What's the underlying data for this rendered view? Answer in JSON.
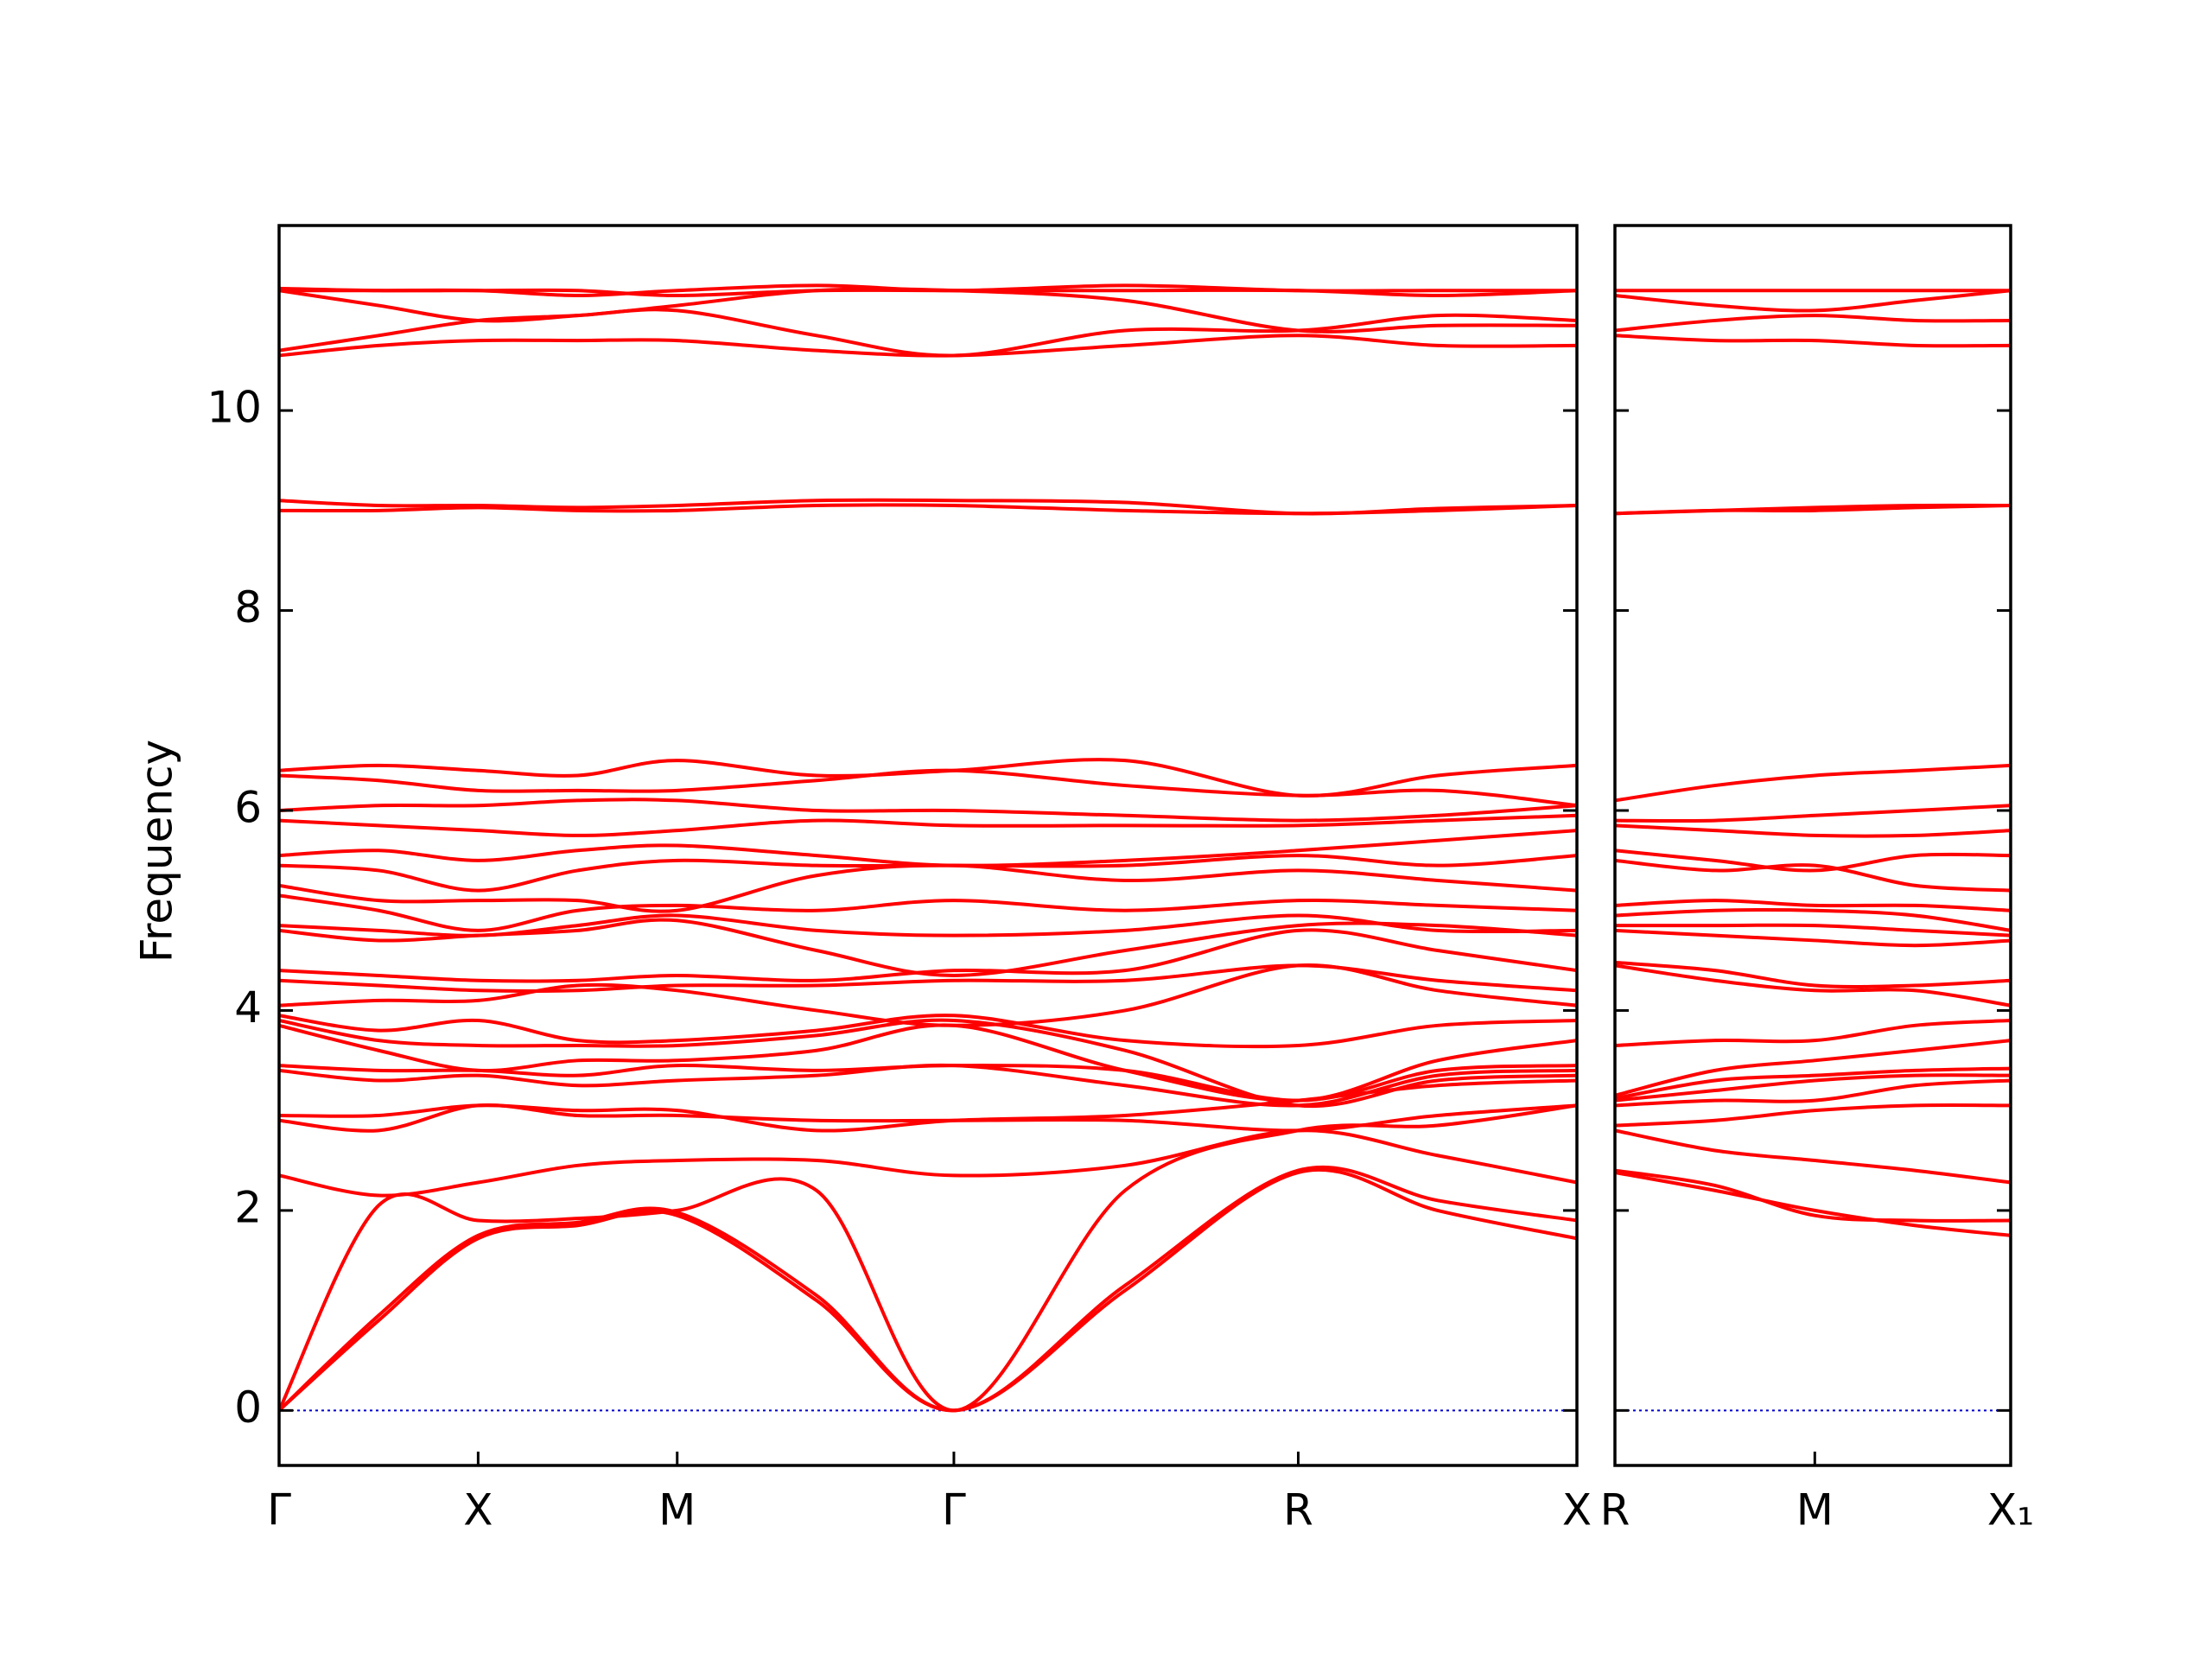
{
  "chart_data": [
    {
      "type": "line",
      "ylabel": "Frequency",
      "color": "#ff0000",
      "zero_line": true,
      "zero_line_color": "#0000cc",
      "x": [
        0,
        0.5,
        1,
        1.5,
        2,
        2.7,
        3.39,
        4.25,
        5.12,
        5.82,
        6.52
      ],
      "xlim": [
        0,
        6.52
      ],
      "xticks": [
        {
          "value": 0,
          "label": "Γ"
        },
        {
          "value": 1,
          "label": "X"
        },
        {
          "value": 2,
          "label": "M"
        },
        {
          "value": 3.39,
          "label": "Γ"
        },
        {
          "value": 5.12,
          "label": "R"
        },
        {
          "value": 6.52,
          "label": "X"
        }
      ],
      "ylim": [
        -0.55,
        11.85
      ],
      "yticks": [
        0,
        2,
        4,
        6,
        8,
        10
      ],
      "series": [
        {
          "values": [
            0,
            0.9,
            1.72,
            1.85,
            1.95,
            1.1,
            0,
            1.2,
            2.38,
            2.0,
            1.72
          ]
        },
        {
          "values": [
            0,
            0.95,
            1.75,
            1.88,
            1.98,
            1.15,
            0,
            1.25,
            2.4,
            2.1,
            1.9
          ]
        },
        {
          "values": [
            0,
            2.05,
            1.9,
            1.92,
            2.0,
            2.2,
            0,
            2.2,
            2.8,
            2.85,
            3.05
          ]
        },
        {
          "values": [
            2.35,
            2.15,
            2.28,
            2.45,
            2.5,
            2.5,
            2.35,
            2.45,
            2.8,
            2.55,
            2.28
          ]
        },
        {
          "values": [
            2.9,
            2.8,
            3.05,
            2.95,
            2.95,
            2.9,
            2.9,
            2.9,
            2.8,
            2.95,
            3.05
          ]
        },
        {
          "values": [
            2.95,
            2.95,
            3.05,
            3.0,
            3.0,
            2.8,
            2.9,
            2.95,
            3.1,
            3.25,
            3.3
          ]
        },
        {
          "values": [
            3.4,
            3.3,
            3.35,
            3.25,
            3.3,
            3.35,
            3.45,
            3.25,
            3.05,
            3.35,
            3.4
          ]
        },
        {
          "values": [
            3.45,
            3.4,
            3.4,
            3.35,
            3.45,
            3.4,
            3.45,
            3.4,
            3.1,
            3.4,
            3.45
          ]
        },
        {
          "values": [
            3.85,
            3.6,
            3.4,
            3.5,
            3.5,
            3.6,
            3.85,
            3.4,
            3.1,
            3.5,
            3.7
          ]
        },
        {
          "values": [
            3.9,
            3.7,
            3.65,
            3.65,
            3.65,
            3.75,
            3.9,
            3.6,
            3.05,
            3.3,
            3.35
          ]
        },
        {
          "values": [
            3.95,
            3.8,
            3.9,
            3.7,
            3.7,
            3.8,
            3.95,
            3.7,
            3.65,
            3.85,
            3.9
          ]
        },
        {
          "values": [
            4.05,
            4.1,
            4.1,
            4.25,
            4.2,
            4.0,
            3.85,
            4.0,
            4.45,
            4.2,
            4.05
          ]
        },
        {
          "values": [
            4.3,
            4.25,
            4.2,
            4.2,
            4.25,
            4.25,
            4.3,
            4.3,
            4.45,
            4.3,
            4.2
          ]
        },
        {
          "values": [
            4.4,
            4.35,
            4.3,
            4.3,
            4.35,
            4.3,
            4.4,
            4.4,
            4.8,
            4.6,
            4.4
          ]
        },
        {
          "values": [
            4.8,
            4.7,
            4.75,
            4.8,
            4.9,
            4.6,
            4.35,
            4.6,
            4.85,
            4.85,
            4.75
          ]
        },
        {
          "values": [
            4.85,
            4.8,
            4.75,
            4.85,
            4.95,
            4.8,
            4.75,
            4.8,
            4.95,
            4.8,
            4.8
          ]
        },
        {
          "values": [
            5.15,
            5.0,
            4.8,
            5.0,
            5.05,
            5.0,
            5.1,
            5.0,
            5.1,
            5.05,
            5.0
          ]
        },
        {
          "values": [
            5.25,
            5.1,
            5.1,
            5.1,
            5.0,
            5.35,
            5.45,
            5.3,
            5.4,
            5.3,
            5.2
          ]
        },
        {
          "values": [
            5.45,
            5.4,
            5.2,
            5.4,
            5.5,
            5.45,
            5.45,
            5.45,
            5.55,
            5.45,
            5.55
          ]
        },
        {
          "values": [
            5.55,
            5.6,
            5.5,
            5.6,
            5.65,
            5.55,
            5.45,
            5.5,
            5.6,
            5.7,
            5.8
          ]
        },
        {
          "values": [
            5.9,
            5.85,
            5.8,
            5.75,
            5.8,
            5.9,
            5.85,
            5.85,
            5.85,
            5.9,
            5.95
          ]
        },
        {
          "values": [
            6.0,
            6.05,
            6.05,
            6.1,
            6.1,
            6.0,
            6.0,
            5.95,
            5.9,
            5.95,
            6.05
          ]
        },
        {
          "values": [
            6.35,
            6.3,
            6.2,
            6.2,
            6.2,
            6.3,
            6.4,
            6.25,
            6.15,
            6.2,
            6.05
          ]
        },
        {
          "values": [
            6.4,
            6.45,
            6.4,
            6.35,
            6.5,
            6.35,
            6.4,
            6.5,
            6.15,
            6.35,
            6.45
          ]
        },
        {
          "values": [
            9.0,
            9.0,
            9.03,
            9.0,
            9.0,
            9.05,
            9.05,
            9.0,
            8.97,
            9.0,
            9.05
          ]
        },
        {
          "values": [
            9.1,
            9.05,
            9.05,
            9.03,
            9.05,
            9.1,
            9.1,
            9.08,
            8.97,
            9.02,
            9.05
          ]
        },
        {
          "values": [
            10.55,
            10.65,
            10.7,
            10.7,
            10.7,
            10.6,
            10.55,
            10.65,
            10.75,
            10.65,
            10.65
          ]
        },
        {
          "values": [
            10.6,
            10.75,
            10.9,
            10.95,
            11.0,
            10.75,
            10.55,
            10.8,
            10.8,
            10.95,
            10.9
          ]
        },
        {
          "values": [
            11.2,
            11.05,
            10.9,
            10.95,
            11.05,
            11.2,
            11.2,
            11.1,
            10.8,
            10.85,
            10.85
          ]
        },
        {
          "values": [
            11.2,
            11.2,
            11.2,
            11.15,
            11.2,
            11.25,
            11.2,
            11.25,
            11.2,
            11.2,
            11.2
          ]
        },
        {
          "values": [
            11.22,
            11.2,
            11.2,
            11.2,
            11.15,
            11.2,
            11.2,
            11.2,
            11.2,
            11.15,
            11.2
          ]
        }
      ]
    },
    {
      "type": "line",
      "color": "#ff0000",
      "zero_line": true,
      "zero_line_color": "#0000cc",
      "x": [
        0,
        0.5,
        1,
        1.5,
        1.98
      ],
      "xlim": [
        0,
        1.98
      ],
      "xticks": [
        {
          "value": 0,
          "label": "R"
        },
        {
          "value": 1,
          "label": "M"
        },
        {
          "value": 1.98,
          "label": "X₁"
        }
      ],
      "ylim": [
        -0.55,
        11.85
      ],
      "series": [
        {
          "values": [
            2.38,
            2.2,
            2.0,
            1.85,
            1.75
          ]
        },
        {
          "values": [
            2.4,
            2.25,
            1.95,
            1.9,
            1.9
          ]
        },
        {
          "values": [
            2.8,
            2.6,
            2.5,
            2.4,
            2.28
          ]
        },
        {
          "values": [
            2.85,
            2.9,
            3.0,
            3.05,
            3.05
          ]
        },
        {
          "values": [
            3.05,
            3.1,
            3.1,
            3.25,
            3.3
          ]
        },
        {
          "values": [
            3.1,
            3.2,
            3.3,
            3.35,
            3.35
          ]
        },
        {
          "values": [
            3.12,
            3.3,
            3.35,
            3.4,
            3.42
          ]
        },
        {
          "values": [
            3.15,
            3.4,
            3.5,
            3.6,
            3.7
          ]
        },
        {
          "values": [
            3.65,
            3.7,
            3.7,
            3.85,
            3.9
          ]
        },
        {
          "values": [
            4.45,
            4.3,
            4.2,
            4.2,
            4.05
          ]
        },
        {
          "values": [
            4.48,
            4.4,
            4.25,
            4.25,
            4.3
          ]
        },
        {
          "values": [
            4.8,
            4.75,
            4.7,
            4.65,
            4.7
          ]
        },
        {
          "values": [
            4.85,
            4.85,
            4.85,
            4.8,
            4.75
          ]
        },
        {
          "values": [
            4.95,
            5.0,
            5.0,
            4.95,
            4.8
          ]
        },
        {
          "values": [
            5.05,
            5.1,
            5.05,
            5.05,
            5.0
          ]
        },
        {
          "values": [
            5.5,
            5.4,
            5.45,
            5.25,
            5.2
          ]
        },
        {
          "values": [
            5.6,
            5.5,
            5.4,
            5.55,
            5.55
          ]
        },
        {
          "values": [
            5.85,
            5.8,
            5.75,
            5.75,
            5.8
          ]
        },
        {
          "values": [
            5.9,
            5.9,
            5.95,
            6.0,
            6.05
          ]
        },
        {
          "values": [
            6.1,
            6.25,
            6.35,
            6.4,
            6.45
          ]
        },
        {
          "values": [
            8.97,
            9.0,
            9.0,
            9.03,
            9.05
          ]
        },
        {
          "values": [
            8.97,
            9.0,
            9.03,
            9.05,
            9.05
          ]
        },
        {
          "values": [
            10.75,
            10.7,
            10.7,
            10.65,
            10.65
          ]
        },
        {
          "values": [
            10.8,
            10.9,
            10.95,
            10.9,
            10.9
          ]
        },
        {
          "values": [
            11.15,
            11.05,
            11.0,
            11.1,
            11.2
          ]
        },
        {
          "values": [
            11.2,
            11.2,
            11.2,
            11.2,
            11.2
          ]
        }
      ]
    }
  ]
}
